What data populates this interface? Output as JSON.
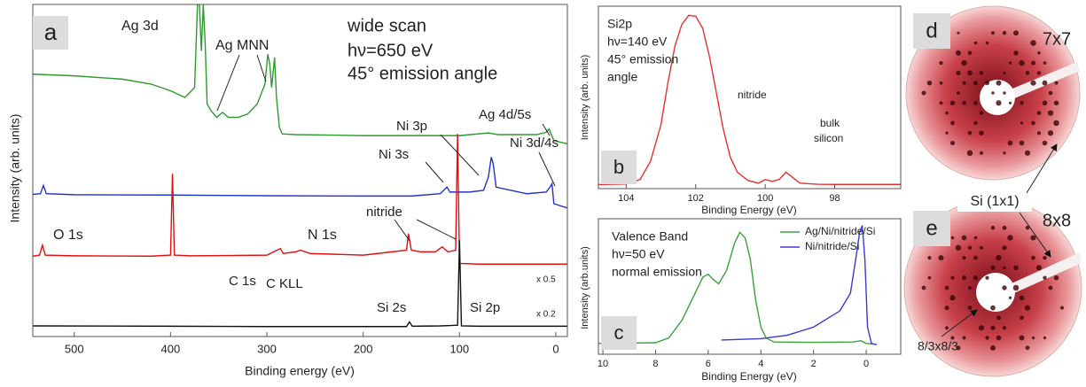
{
  "chart_data": [
    {
      "type": "line",
      "panel_label": "a",
      "x_label": "Binding energy (eV)",
      "y_label": "Intensity (arb. units)",
      "xlim": [
        543,
        -12
      ],
      "xticks": [
        500,
        400,
        300,
        200,
        100,
        0
      ],
      "ylim": [
        0,
        100
      ],
      "annotations": [
        "wide scan",
        "hν=650 eV",
        "45° emission angle",
        "Ag 3d",
        "Ag MNN",
        "Ag 4d/5s",
        "Ni 3p",
        "Ni 3s",
        "Ni 3d/4s",
        "O 1s",
        "N 1s",
        "nitride",
        "C 1s",
        "C KLL",
        "Si 2s",
        "Si 2p",
        "x 0.5",
        "x 0.2"
      ],
      "series": [
        {
          "color": "#2e9b2e",
          "x": [
            543,
            500,
            450,
            420,
            400,
            385,
            375,
            372,
            370,
            368,
            366,
            364,
            362,
            358,
            352,
            346,
            340,
            330,
            320,
            310,
            302,
            299,
            297,
            295,
            292,
            290,
            287,
            284,
            270,
            200,
            150,
            100,
            70,
            60,
            20,
            10,
            7,
            5,
            2,
            -12
          ],
          "values": [
            79,
            78.5,
            77.5,
            76,
            74,
            72,
            75,
            100,
            100,
            86,
            100,
            88,
            70,
            68,
            66,
            67.5,
            66,
            66,
            67,
            70,
            76,
            85,
            82,
            75,
            84,
            72,
            63,
            61,
            60.8,
            60.5,
            60.5,
            60.5,
            61.3,
            60.8,
            60.8,
            61.5,
            62.5,
            61,
            59,
            58
          ]
        },
        {
          "color": "#2233cc",
          "x": [
            543,
            535,
            532,
            529,
            500,
            400,
            300,
            200,
            150,
            120,
            113,
            110,
            90,
            75,
            70,
            67,
            65,
            62,
            30,
            10,
            6,
            4,
            2,
            -12
          ],
          "values": [
            42.8,
            43,
            45.5,
            43,
            42.7,
            42.6,
            42.4,
            42.3,
            42.3,
            43,
            45,
            43.5,
            43.5,
            44,
            48,
            54,
            52,
            45,
            43,
            43.5,
            45,
            46,
            40,
            38.7
          ]
        },
        {
          "color": "#e01010",
          "x": [
            543,
            536,
            533,
            530,
            500,
            420,
            400,
            398,
            396,
            380,
            300,
            286,
            283,
            270,
            265,
            255,
            200,
            170,
            155,
            153,
            150,
            140,
            125,
            118,
            112,
            104,
            102,
            100,
            80,
            50,
            -12
          ],
          "values": [
            24.2,
            24.5,
            27.5,
            24.5,
            24.3,
            24.2,
            24.5,
            49,
            24.5,
            24.3,
            24.5,
            26.5,
            25,
            25.5,
            26,
            25,
            24.5,
            25.5,
            26,
            31,
            26,
            25.5,
            25.5,
            27,
            25.5,
            26,
            61,
            22,
            21.8,
            21.8,
            21.8
          ]
        },
        {
          "color": "#111111",
          "x": [
            543,
            400,
            300,
            200,
            155,
            152,
            149,
            120,
            102,
            100,
            98,
            80,
            -12
          ],
          "values": [
            3.2,
            3.1,
            3,
            3,
            3,
            4.4,
            3.1,
            3.2,
            3.4,
            29,
            3.2,
            3.1,
            3.1
          ]
        }
      ]
    },
    {
      "type": "line",
      "panel_label": "b",
      "x_label": "Binding Energy (eV)",
      "y_label": "Intensity (arb. units)",
      "xlim": [
        104.8,
        96.1
      ],
      "xticks": [
        104,
        102,
        100,
        98
      ],
      "ylim": [
        0,
        100
      ],
      "annotations": [
        "Si2p",
        "hν=140 eV",
        "45° emission",
        "angle",
        "nitride",
        "bulk",
        "silicon"
      ],
      "series": [
        {
          "color": "#e83030",
          "x": [
            104.8,
            104,
            103.6,
            103.3,
            103,
            102.8,
            102.6,
            102.4,
            102.2,
            102,
            101.8,
            101.6,
            101.4,
            101.2,
            101,
            100.8,
            100.5,
            100.2,
            100,
            99.8,
            99.6,
            99.4,
            99.2,
            99,
            98.5,
            98,
            96.1
          ],
          "values": [
            2.2,
            2.5,
            5,
            15,
            35,
            58,
            78,
            90,
            95,
            94.5,
            88,
            72,
            52,
            32,
            17,
            9,
            4.5,
            3,
            5,
            4,
            5,
            9,
            6,
            3,
            2.4,
            2.3,
            2.3
          ]
        }
      ]
    },
    {
      "type": "line",
      "panel_label": "c",
      "x_label": "Binding Energy (eV)",
      "y_label": "Intensity (arb.units)",
      "xlim": [
        10.17,
        -1.31
      ],
      "xticks": [
        10,
        8,
        6,
        4,
        2,
        0
      ],
      "ylim": [
        0,
        100
      ],
      "annotations": [
        "Valence Band",
        "hν=50 eV",
        "normal emission"
      ],
      "series": [
        {
          "name": "Ag/Ni/nitride/Si",
          "color": "#3aa33a",
          "x": [
            10.17,
            9,
            8,
            7.5,
            7,
            6.5,
            6.2,
            6,
            5.8,
            5.6,
            5.3,
            5,
            4.8,
            4.6,
            4.4,
            4.2,
            4,
            3.8,
            3.5,
            2,
            0.5,
            0.2,
            0,
            -0.3
          ],
          "values": [
            8,
            8.2,
            8.5,
            12,
            25,
            45,
            57,
            59,
            55,
            52,
            62,
            82,
            90,
            86,
            70,
            40,
            20,
            12,
            9,
            8.8,
            9,
            10,
            8,
            7.5
          ]
        },
        {
          "name": "Ni/nitride/Si",
          "color": "#3a3ad0",
          "x": [
            5.5,
            4,
            3,
            2,
            1,
            0.6,
            0.4,
            0.25,
            0.15,
            0.05,
            -0.05,
            -0.2,
            -0.4
          ],
          "values": [
            10.5,
            11.5,
            14,
            20,
            32,
            45,
            70,
            90,
            95,
            70,
            20,
            8,
            7
          ]
        }
      ]
    }
  ],
  "leed": {
    "panels": [
      {
        "label": "d",
        "pattern": "7x7"
      },
      {
        "label": "e",
        "pattern": "8x8"
      }
    ],
    "annotations": [
      "Si (1x1)",
      "8/3x8/3"
    ]
  }
}
